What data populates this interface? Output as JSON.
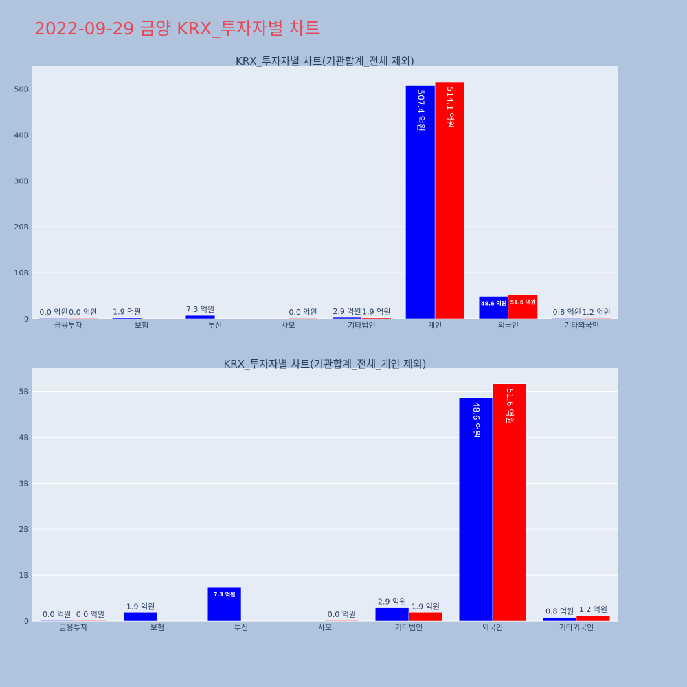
{
  "page": {
    "title": "2022-09-29 금양 KRX_투자자별 차트"
  },
  "colors": {
    "buy": "#0000ff",
    "sell": "#ff0000",
    "plot_bg": "#e5ecf6",
    "page_bg": "#b0c4de",
    "title": "#e8475a"
  },
  "chart_data": [
    {
      "type": "bar",
      "title": "KRX_투자자별 차트(기관합계_전체 제외)",
      "categories": [
        "금융투자",
        "보험",
        "투신",
        "사모",
        "기타법인",
        "개인",
        "외국인",
        "기타외국인"
      ],
      "series": [
        {
          "color": "#0000ff",
          "values": [
            0.0,
            0.19,
            0.73,
            null,
            0.29,
            50.74,
            4.86,
            0.08
          ],
          "labels": [
            "0.0 억원",
            "1.9 억원",
            "7.3 억원",
            "",
            "2.9 억원",
            "507.4 억원",
            "48.6 억원",
            "0.8 억원"
          ]
        },
        {
          "color": "#ff0000",
          "values": [
            0.0,
            null,
            null,
            0.0,
            0.19,
            51.41,
            5.16,
            0.12
          ],
          "labels": [
            "0.0 억원",
            "",
            "",
            "0.0 억원",
            "1.9 억원",
            "514.1 억원",
            "51.6 억원",
            "1.2 억원"
          ]
        }
      ],
      "ylim": [
        0,
        55
      ],
      "yticks": [
        0,
        10,
        20,
        30,
        40,
        50
      ],
      "ytick_labels": [
        "0",
        "10B",
        "20B",
        "30B",
        "40B",
        "50B"
      ],
      "grid": true,
      "legend": "none"
    },
    {
      "type": "bar",
      "title": "KRX_투자자별 차트(기관합계_전체_개인 제외)",
      "categories": [
        "금융투자",
        "보험",
        "투신",
        "사모",
        "기타법인",
        "외국인",
        "기타외국인"
      ],
      "series": [
        {
          "color": "#0000ff",
          "values": [
            0.0,
            0.19,
            0.73,
            null,
            0.29,
            4.86,
            0.08
          ],
          "labels": [
            "0.0 억원",
            "1.9 억원",
            "7.3 억원",
            "",
            "2.9 억원",
            "48.6 억원",
            "0.8 억원"
          ]
        },
        {
          "color": "#ff0000",
          "values": [
            0.0,
            null,
            null,
            0.0,
            0.19,
            5.16,
            0.12
          ],
          "labels": [
            "0.0 억원",
            "",
            "",
            "0.0 억원",
            "1.9 억원",
            "51.6 억원",
            "1.2 억원"
          ]
        }
      ],
      "ylim": [
        0,
        5.5
      ],
      "yticks": [
        0,
        1,
        2,
        3,
        4,
        5
      ],
      "ytick_labels": [
        "0",
        "1B",
        "2B",
        "3B",
        "4B",
        "5B"
      ],
      "grid": true,
      "legend": "none"
    }
  ]
}
